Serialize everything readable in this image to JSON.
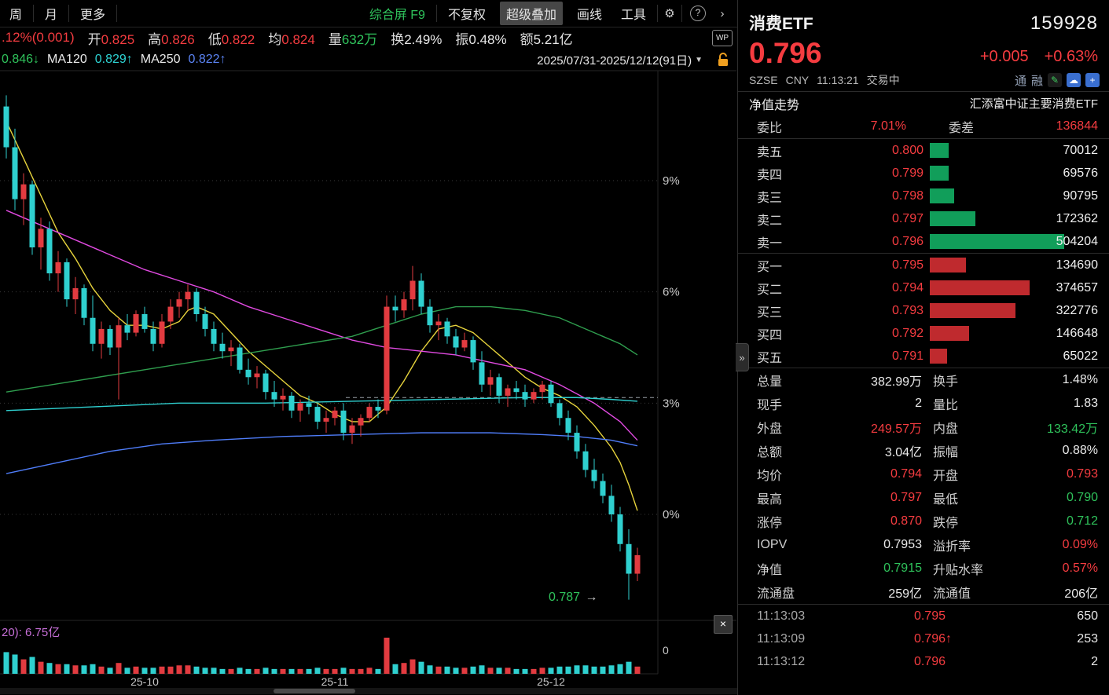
{
  "colors": {
    "up": "#e23b40",
    "down": "#2fd0cf",
    "text_red": "#f53c40",
    "text_green": "#2fc25b",
    "bar_green": "#119e5a",
    "bar_red": "#bf2a2e",
    "ma_yellow": "#e6d33c",
    "ma_magenta": "#e14ae1",
    "ma_green": "#2f9e4e",
    "ma_cyan": "#2fd0d0",
    "ma_blue": "#4f7df9"
  },
  "toolbar": {
    "tabs": [
      {
        "label": "周"
      },
      {
        "label": "月"
      },
      {
        "label": "更多"
      }
    ],
    "right_items": [
      {
        "label": "综合屏 F9",
        "cls": "green",
        "name": "composite-screen-button"
      },
      {
        "sep": true
      },
      {
        "label": "不复权",
        "name": "no-adjustment-button"
      },
      {
        "label": "超级叠加",
        "cls": "active",
        "name": "super-overlay-button"
      },
      {
        "label": "画线",
        "name": "draw-line-button"
      },
      {
        "label": "工具",
        "name": "tools-button"
      },
      {
        "sep": true
      },
      {
        "icon": "gear",
        "glyph": "⚙",
        "name": "settings-icon"
      },
      {
        "sep": true
      },
      {
        "icon": "help",
        "glyph": "?",
        "name": "help-icon"
      },
      {
        "icon": "chevron",
        "glyph": "›",
        "name": "expand-toolbar-icon"
      }
    ]
  },
  "info_row": {
    "change": ".12%(0.001)",
    "fields": [
      {
        "label": "开",
        "value": "0.825",
        "color": "red"
      },
      {
        "label": "高",
        "value": "0.826",
        "color": "red"
      },
      {
        "label": "低",
        "value": "0.822",
        "color": "red"
      },
      {
        "label": "均",
        "value": "0.824",
        "color": "red"
      },
      {
        "label": "量",
        "value": "632万",
        "color": "green"
      },
      {
        "label": "换",
        "value": "2.49%",
        "color": "white"
      },
      {
        "label": "振",
        "value": "0.48%",
        "color": "white"
      },
      {
        "label": "额",
        "value": "5.21亿",
        "color": "white"
      }
    ],
    "wp_icon": "WP"
  },
  "ma_row": {
    "prefix_value": "0.846↓",
    "ma120_label": "MA120",
    "ma120_value": "0.829↑",
    "ma250_label": "MA250",
    "ma250_value": "0.822↑",
    "date_range": "2025/07/31-2025/12/12(91日)",
    "dropdown_glyph": "▼"
  },
  "chart_data": {
    "type": "candlestick",
    "title": "消费ETF 159928 日K 百分比坐标",
    "y_axis_unit": "%",
    "ylim": [
      -2.9,
      11.4
    ],
    "y_ticks": [
      {
        "pct": 9,
        "label": "9%"
      },
      {
        "pct": 6,
        "label": "6%"
      },
      {
        "pct": 3,
        "label": "3%"
      },
      {
        "pct": 0,
        "label": "0%"
      }
    ],
    "x_ticks": [
      {
        "i": 16,
        "label": "25-10"
      },
      {
        "i": 38,
        "label": "25-11"
      },
      {
        "i": 63,
        "label": "25-12"
      }
    ],
    "level_line_pct": 3.15,
    "annotation": {
      "text": "0.787",
      "arrow": "→"
    },
    "vol_zero_label": "0",
    "volume_pane": {
      "label": "20): 6.75亿",
      "close_glyph": "×"
    },
    "candles": [
      [
        11.0,
        11.3,
        9.6,
        9.9
      ],
      [
        9.9,
        10.4,
        8.2,
        8.5
      ],
      [
        8.5,
        9.2,
        7.8,
        8.9
      ],
      [
        8.9,
        9.0,
        7.0,
        7.2
      ],
      [
        7.2,
        8.0,
        6.6,
        7.7
      ],
      [
        7.7,
        7.9,
        6.3,
        6.5
      ],
      [
        6.5,
        7.1,
        6.0,
        6.8
      ],
      [
        6.8,
        6.9,
        5.6,
        5.8
      ],
      [
        5.8,
        6.4,
        5.4,
        6.1
      ],
      [
        6.1,
        6.2,
        5.1,
        5.3
      ],
      [
        5.3,
        5.9,
        4.4,
        4.6
      ],
      [
        4.6,
        5.2,
        4.2,
        5.0
      ],
      [
        5.0,
        5.1,
        4.3,
        4.5
      ],
      [
        4.5,
        5.3,
        3.1,
        5.1
      ],
      [
        5.1,
        5.4,
        4.7,
        4.9
      ],
      [
        4.9,
        5.5,
        4.8,
        5.4
      ],
      [
        5.4,
        5.6,
        4.9,
        5.0
      ],
      [
        5.0,
        5.2,
        4.4,
        4.6
      ],
      [
        4.6,
        5.4,
        4.5,
        5.2
      ],
      [
        5.2,
        5.8,
        5.0,
        5.6
      ],
      [
        5.6,
        6.0,
        5.3,
        5.8
      ],
      [
        5.8,
        6.2,
        5.5,
        6.0
      ],
      [
        6.0,
        6.1,
        5.2,
        5.4
      ],
      [
        5.4,
        5.6,
        4.8,
        5.0
      ],
      [
        5.0,
        5.2,
        4.4,
        4.6
      ],
      [
        4.6,
        4.9,
        4.2,
        4.4
      ],
      [
        4.4,
        4.7,
        4.0,
        4.5
      ],
      [
        4.5,
        4.6,
        3.8,
        3.9
      ],
      [
        3.9,
        4.2,
        3.5,
        3.7
      ],
      [
        3.7,
        4.0,
        3.4,
        3.8
      ],
      [
        3.8,
        3.9,
        3.1,
        3.3
      ],
      [
        3.3,
        3.6,
        2.9,
        3.1
      ],
      [
        3.1,
        3.4,
        2.8,
        3.2
      ],
      [
        3.2,
        3.3,
        2.6,
        2.8
      ],
      [
        2.8,
        3.1,
        2.5,
        3.0
      ],
      [
        3.0,
        3.2,
        2.7,
        2.9
      ],
      [
        2.9,
        3.0,
        2.3,
        2.5
      ],
      [
        2.5,
        2.8,
        2.2,
        2.6
      ],
      [
        2.6,
        2.9,
        2.4,
        2.8
      ],
      [
        2.8,
        3.0,
        2.0,
        2.2
      ],
      [
        2.2,
        2.6,
        1.9,
        2.4
      ],
      [
        2.4,
        2.7,
        2.1,
        2.6
      ],
      [
        2.6,
        3.0,
        2.5,
        2.9
      ],
      [
        2.9,
        3.1,
        2.6,
        2.8
      ],
      [
        2.8,
        5.9,
        2.7,
        5.6
      ],
      [
        5.6,
        5.9,
        5.2,
        5.5
      ],
      [
        5.5,
        6.0,
        5.3,
        5.8
      ],
      [
        5.8,
        6.7,
        5.5,
        6.3
      ],
      [
        6.3,
        6.5,
        5.4,
        5.6
      ],
      [
        5.6,
        5.8,
        4.9,
        5.1
      ],
      [
        5.1,
        5.4,
        4.7,
        5.2
      ],
      [
        5.2,
        5.3,
        4.6,
        4.8
      ],
      [
        4.8,
        5.0,
        4.3,
        4.5
      ],
      [
        4.5,
        4.9,
        4.4,
        4.7
      ],
      [
        4.7,
        4.8,
        3.9,
        4.1
      ],
      [
        4.1,
        4.4,
        3.3,
        3.5
      ],
      [
        3.5,
        3.9,
        3.2,
        3.7
      ],
      [
        3.7,
        3.8,
        3.0,
        3.2
      ],
      [
        3.2,
        3.5,
        2.9,
        3.4
      ],
      [
        3.4,
        3.6,
        3.1,
        3.3
      ],
      [
        3.3,
        3.5,
        2.9,
        3.1
      ],
      [
        3.1,
        3.4,
        3.0,
        3.3
      ],
      [
        3.3,
        3.6,
        3.1,
        3.5
      ],
      [
        3.5,
        3.6,
        2.9,
        3.0
      ],
      [
        3.0,
        3.1,
        2.4,
        2.6
      ],
      [
        2.6,
        2.8,
        2.0,
        2.2
      ],
      [
        2.2,
        2.4,
        1.5,
        1.7
      ],
      [
        1.7,
        1.9,
        1.0,
        1.2
      ],
      [
        1.2,
        1.5,
        0.7,
        0.9
      ],
      [
        0.9,
        1.1,
        0.3,
        0.5
      ],
      [
        0.5,
        0.8,
        -0.2,
        0.0
      ],
      [
        0.0,
        0.2,
        -1.0,
        -0.8
      ],
      [
        -0.8,
        -0.4,
        -2.3,
        -1.6
      ],
      [
        -1.6,
        -0.9,
        -1.8,
        -1.1
      ]
    ],
    "volumes": [
      18,
      16,
      12,
      14,
      10,
      9,
      8,
      8,
      7,
      7,
      8,
      6,
      5,
      9,
      5,
      6,
      5,
      5,
      6,
      6,
      7,
      7,
      6,
      5,
      5,
      4,
      4,
      5,
      4,
      4,
      5,
      4,
      4,
      4,
      4,
      4,
      5,
      4,
      4,
      5,
      4,
      4,
      5,
      4,
      30,
      8,
      9,
      12,
      10,
      7,
      6,
      6,
      5,
      5,
      6,
      7,
      5,
      5,
      5,
      4,
      4,
      4,
      5,
      5,
      6,
      6,
      7,
      7,
      6,
      6,
      7,
      8,
      10,
      6
    ],
    "ma_lines": {
      "yellow": [
        [
          0,
          10.6
        ],
        [
          2,
          9.6
        ],
        [
          4,
          8.6
        ],
        [
          6,
          7.6
        ],
        [
          8,
          6.9
        ],
        [
          10,
          6.1
        ],
        [
          12,
          5.5
        ],
        [
          14,
          5.1
        ],
        [
          16,
          5.1
        ],
        [
          18,
          5.0
        ],
        [
          20,
          5.2
        ],
        [
          21,
          5.5
        ],
        [
          22,
          5.6
        ],
        [
          24,
          5.4
        ],
        [
          26,
          4.9
        ],
        [
          28,
          4.4
        ],
        [
          30,
          4.0
        ],
        [
          32,
          3.6
        ],
        [
          34,
          3.2
        ],
        [
          36,
          3.0
        ],
        [
          38,
          2.7
        ],
        [
          40,
          2.5
        ],
        [
          42,
          2.5
        ],
        [
          44,
          2.9
        ],
        [
          46,
          3.6
        ],
        [
          48,
          4.4
        ],
        [
          50,
          5.0
        ],
        [
          52,
          5.1
        ],
        [
          54,
          4.9
        ],
        [
          56,
          4.5
        ],
        [
          58,
          4.1
        ],
        [
          60,
          3.7
        ],
        [
          62,
          3.4
        ],
        [
          64,
          3.2
        ],
        [
          66,
          2.9
        ],
        [
          68,
          2.4
        ],
        [
          70,
          1.8
        ],
        [
          71,
          1.4
        ],
        [
          72,
          0.8
        ],
        [
          73,
          0.1
        ]
      ],
      "magenta": [
        [
          0,
          8.2
        ],
        [
          4,
          7.8
        ],
        [
          8,
          7.4
        ],
        [
          12,
          7.0
        ],
        [
          16,
          6.6
        ],
        [
          20,
          6.3
        ],
        [
          24,
          6.0
        ],
        [
          28,
          5.6
        ],
        [
          32,
          5.3
        ],
        [
          36,
          5.0
        ],
        [
          40,
          4.7
        ],
        [
          44,
          4.5
        ],
        [
          48,
          4.4
        ],
        [
          52,
          4.3
        ],
        [
          56,
          4.1
        ],
        [
          60,
          3.9
        ],
        [
          64,
          3.5
        ],
        [
          68,
          3.0
        ],
        [
          71,
          2.5
        ],
        [
          73,
          2.0
        ]
      ],
      "green": [
        [
          0,
          3.3
        ],
        [
          8,
          3.6
        ],
        [
          16,
          3.9
        ],
        [
          24,
          4.2
        ],
        [
          32,
          4.5
        ],
        [
          40,
          4.8
        ],
        [
          44,
          5.1
        ],
        [
          48,
          5.4
        ],
        [
          52,
          5.6
        ],
        [
          56,
          5.6
        ],
        [
          60,
          5.5
        ],
        [
          64,
          5.3
        ],
        [
          68,
          4.9
        ],
        [
          71,
          4.6
        ],
        [
          73,
          4.3
        ]
      ],
      "cyan": [
        [
          0,
          2.8
        ],
        [
          10,
          2.9
        ],
        [
          20,
          3.0
        ],
        [
          30,
          3.0
        ],
        [
          40,
          3.05
        ],
        [
          50,
          3.1
        ],
        [
          60,
          3.15
        ],
        [
          66,
          3.15
        ],
        [
          70,
          3.1
        ],
        [
          73,
          3.05
        ]
      ],
      "blue": [
        [
          0,
          1.1
        ],
        [
          6,
          1.4
        ],
        [
          12,
          1.7
        ],
        [
          18,
          1.9
        ],
        [
          24,
          2.0
        ],
        [
          32,
          2.1
        ],
        [
          40,
          2.15
        ],
        [
          48,
          2.2
        ],
        [
          56,
          2.2
        ],
        [
          62,
          2.15
        ],
        [
          66,
          2.1
        ],
        [
          70,
          2.0
        ],
        [
          73,
          1.85
        ]
      ]
    }
  },
  "panel": {
    "name": "消费ETF",
    "code": "159928",
    "price": "0.796",
    "change": "+0.005",
    "change_pct": "+0.63%",
    "meta": {
      "exchange": "SZSE",
      "currency": "CNY",
      "time": "11:13:21",
      "status": "交易中",
      "badges": [
        "通",
        "融"
      ],
      "icon_glyphs": {
        "edit": "✎",
        "cloud": "☁",
        "add": "+"
      }
    },
    "fund_row": {
      "left": "净值走势",
      "right": "汇添富中证主要消费ETF"
    },
    "weibi": {
      "label1": "委比",
      "value1": "7.01%",
      "label2": "委差",
      "value2": "136844"
    },
    "max_depth": 504204,
    "sells": [
      {
        "label": "卖五",
        "price": "0.800",
        "vol": "70012",
        "voln": 70012
      },
      {
        "label": "卖四",
        "price": "0.799",
        "vol": "69576",
        "voln": 69576
      },
      {
        "label": "卖三",
        "price": "0.798",
        "vol": "90795",
        "voln": 90795
      },
      {
        "label": "卖二",
        "price": "0.797",
        "vol": "172362",
        "voln": 172362
      },
      {
        "label": "卖一",
        "price": "0.796",
        "vol": "504204",
        "voln": 504204
      }
    ],
    "buys": [
      {
        "label": "买一",
        "price": "0.795",
        "vol": "134690",
        "voln": 134690
      },
      {
        "label": "买二",
        "price": "0.794",
        "vol": "374657",
        "voln": 374657
      },
      {
        "label": "买三",
        "price": "0.793",
        "vol": "322776",
        "voln": 322776
      },
      {
        "label": "买四",
        "price": "0.792",
        "vol": "146648",
        "voln": 146648
      },
      {
        "label": "买五",
        "price": "0.791",
        "vol": "65022",
        "voln": 65022
      }
    ],
    "stats": [
      [
        {
          "l": "总量",
          "v": "382.99万",
          "c": "white"
        },
        {
          "l": "换手",
          "v": "1.48%",
          "c": "white"
        }
      ],
      [
        {
          "l": "现手",
          "v": "2",
          "c": "white"
        },
        {
          "l": "量比",
          "v": "1.83",
          "c": "white"
        }
      ],
      [
        {
          "l": "外盘",
          "v": "249.57万",
          "c": "red"
        },
        {
          "l": "内盘",
          "v": "133.42万",
          "c": "green"
        }
      ],
      [
        {
          "l": "总额",
          "v": "3.04亿",
          "c": "white"
        },
        {
          "l": "振幅",
          "v": "0.88%",
          "c": "white"
        }
      ],
      [
        {
          "l": "均价",
          "v": "0.794",
          "c": "red"
        },
        {
          "l": "开盘",
          "v": "0.793",
          "c": "red"
        }
      ],
      [
        {
          "l": "最高",
          "v": "0.797",
          "c": "red"
        },
        {
          "l": "最低",
          "v": "0.790",
          "c": "green"
        }
      ],
      [
        {
          "l": "涨停",
          "v": "0.870",
          "c": "red"
        },
        {
          "l": "跌停",
          "v": "0.712",
          "c": "green"
        }
      ],
      [
        {
          "l": "IOPV",
          "v": "0.7953",
          "c": "white"
        },
        {
          "l": "溢折率",
          "v": "0.09%",
          "c": "red"
        }
      ],
      [
        {
          "l": "净值",
          "v": "0.7915",
          "c": "green"
        },
        {
          "l": "升贴水率",
          "v": "0.57%",
          "c": "red"
        }
      ],
      [
        {
          "l": "流通盘",
          "v": "259亿",
          "c": "white"
        },
        {
          "l": "流通值",
          "v": "206亿",
          "c": "white"
        }
      ]
    ],
    "tick_up_glyph": "↑",
    "ticks": [
      {
        "time": "11:13:03",
        "price": "0.795",
        "dir": "",
        "vol": "650"
      },
      {
        "time": "11:13:09",
        "price": "0.796",
        "dir": "up",
        "vol": "253"
      },
      {
        "time": "11:13:12",
        "price": "0.796",
        "dir": "",
        "vol": "2"
      }
    ],
    "collapse_glyph": "»"
  }
}
